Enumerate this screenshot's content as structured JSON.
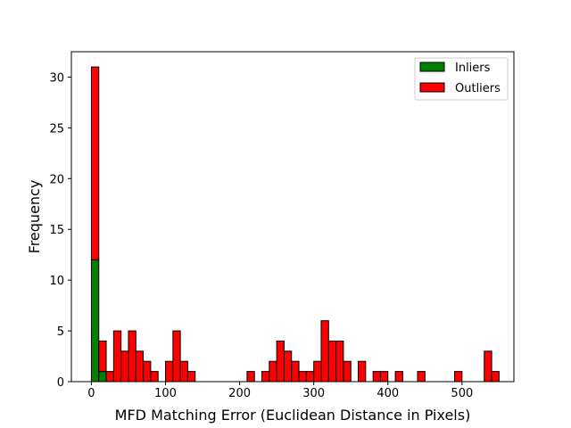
{
  "chart_data": {
    "type": "bar",
    "stacked": true,
    "xlabel": "MFD Matching Error (Euclidean Distance in Pixels)",
    "ylabel": "Frequency",
    "xlim": [
      -27,
      570
    ],
    "ylim": [
      0,
      32.5
    ],
    "xticks": [
      0,
      100,
      200,
      300,
      400,
      500
    ],
    "yticks": [
      0,
      5,
      10,
      15,
      20,
      25,
      30
    ],
    "bin_width": 10,
    "legend_position": "top-right",
    "series": [
      {
        "name": "Inliers",
        "color": "#008000",
        "bins": [
          {
            "x": 0,
            "value": 12
          },
          {
            "x": 10,
            "value": 1
          }
        ]
      },
      {
        "name": "Outliers",
        "color": "#ff0000",
        "bins": [
          {
            "x": 0,
            "value": 19
          },
          {
            "x": 10,
            "value": 3
          },
          {
            "x": 20,
            "value": 1
          },
          {
            "x": 30,
            "value": 5
          },
          {
            "x": 40,
            "value": 3
          },
          {
            "x": 50,
            "value": 5
          },
          {
            "x": 60,
            "value": 3
          },
          {
            "x": 70,
            "value": 2
          },
          {
            "x": 80,
            "value": 1
          },
          {
            "x": 100,
            "value": 2
          },
          {
            "x": 110,
            "value": 5
          },
          {
            "x": 120,
            "value": 2
          },
          {
            "x": 130,
            "value": 1
          },
          {
            "x": 210,
            "value": 1
          },
          {
            "x": 230,
            "value": 1
          },
          {
            "x": 240,
            "value": 2
          },
          {
            "x": 250,
            "value": 4
          },
          {
            "x": 260,
            "value": 3
          },
          {
            "x": 270,
            "value": 2
          },
          {
            "x": 280,
            "value": 1
          },
          {
            "x": 290,
            "value": 1
          },
          {
            "x": 300,
            "value": 2
          },
          {
            "x": 310,
            "value": 6
          },
          {
            "x": 320,
            "value": 4
          },
          {
            "x": 330,
            "value": 4
          },
          {
            "x": 340,
            "value": 2
          },
          {
            "x": 360,
            "value": 2
          },
          {
            "x": 380,
            "value": 1
          },
          {
            "x": 390,
            "value": 1
          },
          {
            "x": 410,
            "value": 1
          },
          {
            "x": 440,
            "value": 1
          },
          {
            "x": 490,
            "value": 1
          },
          {
            "x": 530,
            "value": 3
          },
          {
            "x": 540,
            "value": 1
          }
        ]
      }
    ]
  }
}
